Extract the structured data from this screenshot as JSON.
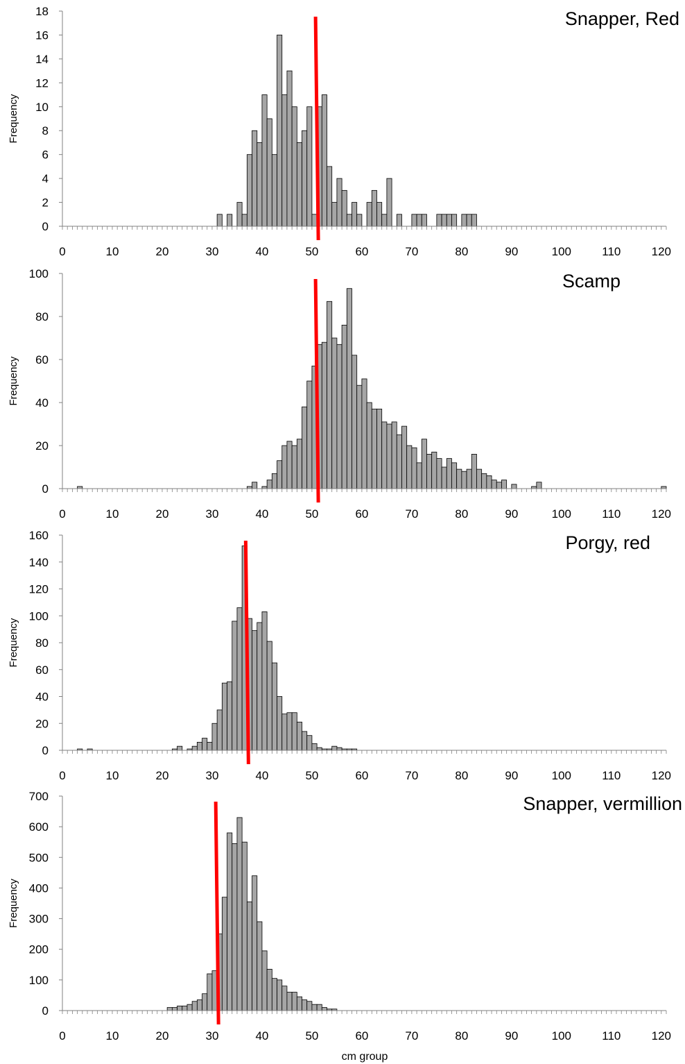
{
  "chart_data": [
    {
      "type": "bar",
      "title": "Snapper, Red",
      "ylabel": "Frequency",
      "xlabel": "",
      "xlim": [
        0,
        121
      ],
      "ylim": [
        0,
        18
      ],
      "yticks": [
        0,
        2,
        4,
        6,
        8,
        10,
        12,
        14,
        16,
        18
      ],
      "xticks": [
        0,
        10,
        20,
        30,
        40,
        50,
        60,
        70,
        80,
        90,
        100,
        110,
        120
      ],
      "bin_width_cm": 1,
      "bins_start_cm": [
        31,
        33,
        35,
        36,
        37,
        38,
        39,
        40,
        41,
        42,
        43,
        44,
        45,
        46,
        47,
        48,
        49,
        50,
        51,
        52,
        53,
        54,
        55,
        56,
        57,
        58,
        59,
        61,
        62,
        63,
        64,
        65,
        67,
        70,
        71,
        72,
        75,
        76,
        77,
        78,
        80,
        81,
        82
      ],
      "values": [
        1,
        1,
        2,
        1,
        6,
        8,
        7,
        11,
        9,
        6,
        16,
        11,
        13,
        10,
        7,
        8,
        10,
        1,
        10,
        11,
        5,
        2,
        4,
        3,
        1,
        2,
        1,
        2,
        3,
        2,
        1,
        4,
        1,
        1,
        1,
        1,
        1,
        1,
        1,
        1,
        1,
        1,
        1
      ],
      "marker_line_cm": 51,
      "grid": false,
      "colors": {
        "bars": "#a6a6a6",
        "bar_edge": "#000000",
        "marker": "#ff0000"
      }
    },
    {
      "type": "bar",
      "title": "Scamp",
      "ylabel": "Frequency",
      "xlabel": "",
      "xlim": [
        0,
        121
      ],
      "ylim": [
        0,
        100
      ],
      "yticks": [
        0,
        20,
        40,
        60,
        80,
        100
      ],
      "xticks": [
        0,
        10,
        20,
        30,
        40,
        50,
        60,
        70,
        80,
        90,
        100,
        110,
        120
      ],
      "bin_width_cm": 1,
      "bins_start_cm": [
        3,
        37,
        38,
        40,
        41,
        42,
        43,
        44,
        45,
        46,
        47,
        48,
        49,
        50,
        51,
        52,
        53,
        54,
        55,
        56,
        57,
        58,
        59,
        60,
        61,
        62,
        63,
        64,
        65,
        66,
        67,
        68,
        69,
        70,
        71,
        72,
        73,
        74,
        75,
        76,
        77,
        78,
        79,
        80,
        81,
        82,
        83,
        84,
        85,
        86,
        87,
        88,
        90,
        94,
        95,
        120
      ],
      "values": [
        1,
        1,
        3,
        1,
        4,
        7,
        13,
        20,
        22,
        20,
        23,
        38,
        50,
        57,
        67,
        68,
        87,
        70,
        67,
        76,
        93,
        62,
        48,
        51,
        40,
        37,
        37,
        31,
        30,
        31,
        25,
        29,
        20,
        19,
        12,
        23,
        16,
        17,
        14,
        10,
        14,
        12,
        9,
        8,
        9,
        16,
        9,
        7,
        6,
        4,
        3,
        4,
        2,
        1,
        3,
        1
      ],
      "marker_line_cm": 51,
      "grid": false,
      "colors": {
        "bars": "#a6a6a6",
        "bar_edge": "#000000",
        "marker": "#ff0000"
      }
    },
    {
      "type": "bar",
      "title": "Porgy, red",
      "ylabel": "Frequency",
      "xlabel": "",
      "xlim": [
        0,
        121
      ],
      "ylim": [
        0,
        160
      ],
      "yticks": [
        0,
        20,
        40,
        60,
        80,
        100,
        120,
        140,
        160
      ],
      "xticks": [
        0,
        10,
        20,
        30,
        40,
        50,
        60,
        70,
        80,
        90,
        100,
        110,
        120
      ],
      "bin_width_cm": 1,
      "bins_start_cm": [
        3,
        5,
        22,
        23,
        25,
        26,
        27,
        28,
        29,
        30,
        31,
        32,
        33,
        34,
        35,
        36,
        37,
        38,
        39,
        40,
        41,
        42,
        43,
        44,
        45,
        46,
        47,
        48,
        49,
        50,
        51,
        52,
        53,
        54,
        55,
        56,
        57,
        58
      ],
      "values": [
        1,
        1,
        1,
        3,
        1,
        3,
        6,
        9,
        6,
        20,
        30,
        50,
        51,
        96,
        106,
        152,
        98,
        89,
        95,
        103,
        81,
        65,
        40,
        27,
        28,
        28,
        21,
        14,
        11,
        5,
        2,
        1,
        1,
        3,
        2,
        1,
        1,
        1
      ],
      "marker_line_cm": 37,
      "grid": false,
      "colors": {
        "bars": "#a6a6a6",
        "bar_edge": "#000000",
        "marker": "#ff0000"
      }
    },
    {
      "type": "bar",
      "title": "Snapper, vermillion",
      "ylabel": "Frequency",
      "xlabel": "cm group",
      "xlim": [
        0,
        121
      ],
      "ylim": [
        0,
        700
      ],
      "yticks": [
        0,
        100,
        200,
        300,
        400,
        500,
        600,
        700
      ],
      "xticks": [
        0,
        10,
        20,
        30,
        40,
        50,
        60,
        70,
        80,
        90,
        100,
        110,
        120
      ],
      "bin_width_cm": 1,
      "bins_start_cm": [
        21,
        22,
        23,
        24,
        25,
        26,
        27,
        28,
        29,
        30,
        31,
        32,
        33,
        34,
        35,
        36,
        37,
        38,
        39,
        40,
        41,
        42,
        43,
        44,
        45,
        46,
        47,
        48,
        49,
        50,
        51,
        52,
        53,
        54
      ],
      "values": [
        10,
        10,
        15,
        15,
        20,
        30,
        35,
        55,
        120,
        130,
        250,
        370,
        580,
        545,
        630,
        550,
        355,
        440,
        290,
        195,
        135,
        105,
        100,
        80,
        60,
        60,
        45,
        35,
        30,
        20,
        20,
        10,
        5,
        5
      ],
      "marker_line_cm": 31,
      "grid": false,
      "colors": {
        "bars": "#a6a6a6",
        "bar_edge": "#000000",
        "marker": "#ff0000"
      }
    }
  ]
}
